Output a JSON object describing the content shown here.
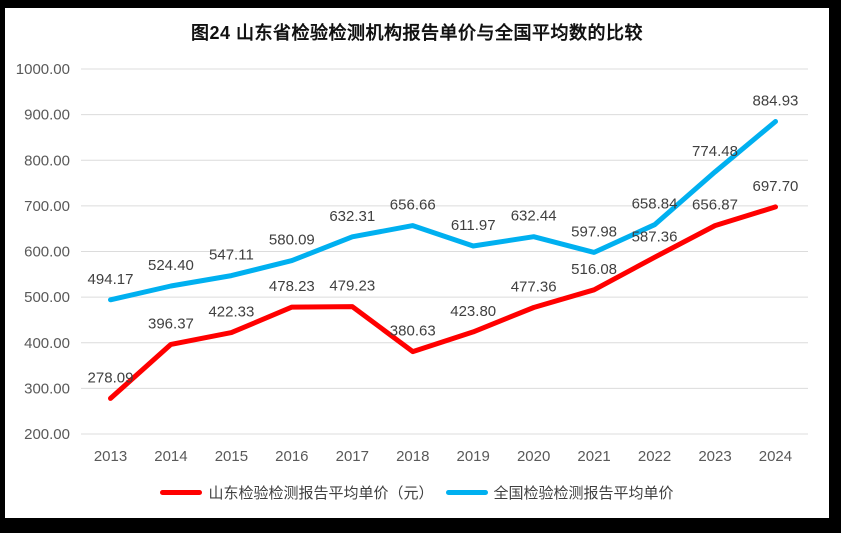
{
  "chart_data": {
    "type": "line",
    "title": "图24  山东省检验检测机构报告单价与全国平均数的比较",
    "categories": [
      "2013",
      "2014",
      "2015",
      "2016",
      "2017",
      "2018",
      "2019",
      "2020",
      "2021",
      "2022",
      "2023",
      "2024"
    ],
    "series": [
      {
        "id": "shandong",
        "name": "山东检验检测报告平均单价（元）",
        "color": "#ff0000",
        "values": [
          278.09,
          396.37,
          422.33,
          478.23,
          479.23,
          380.63,
          423.8,
          477.36,
          516.08,
          587.36,
          656.87,
          697.7
        ]
      },
      {
        "id": "national",
        "name": "全国检验检测报告平均单价",
        "color": "#00b0f0",
        "values": [
          494.17,
          524.4,
          547.11,
          580.09,
          632.31,
          656.66,
          611.97,
          632.44,
          597.98,
          658.84,
          774.48,
          884.93
        ]
      }
    ],
    "xlabel": "",
    "ylabel": "",
    "ylim": [
      200,
      1000
    ],
    "ytick_step": 100,
    "ytick_labels": [
      "1000.00",
      "900.00",
      "800.00",
      "700.00",
      "600.00",
      "500.00",
      "400.00",
      "300.00",
      "200.00"
    ],
    "grid": true,
    "data_labels": true,
    "legend_position": "bottom",
    "colors": {
      "grid": "#dcdcdc",
      "tick_text": "#595959",
      "data_label_text": "#404040",
      "title_text": "#111111",
      "frame": "#000000",
      "plot_background": "#ffffff"
    }
  }
}
